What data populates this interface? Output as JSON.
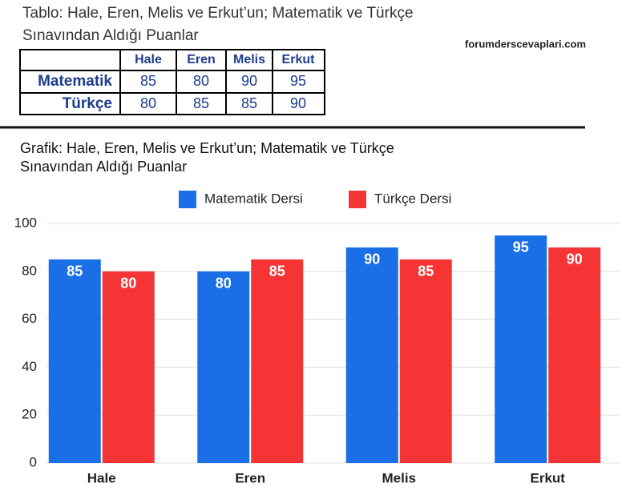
{
  "table_title_lines": [
    "Tablo: Hale, Eren, Melis ve Erkut’un;  Matematik ve Türkçe",
    "Sınavından Aldığı Puanlar"
  ],
  "watermark": "forumderscevaplari.com",
  "table": {
    "header": [
      "Hale",
      "Eren",
      "Melis",
      "Erkut"
    ],
    "rows": [
      {
        "label": "Matematik",
        "values": [
          85,
          80,
          90,
          95
        ]
      },
      {
        "label": "Türkçe",
        "values": [
          80,
          85,
          85,
          90
        ]
      }
    ]
  },
  "chart_data": {
    "type": "bar",
    "title_lines": [
      "Grafik: Hale, Eren, Melis ve Erkut’un; Matematik ve Türkçe",
      "Sınavından Aldığı Puanlar"
    ],
    "categories": [
      "Hale",
      "Eren",
      "Melis",
      "Erkut"
    ],
    "series": [
      {
        "name": "Matematik Dersi",
        "color": "#1a6fe6",
        "values": [
          85,
          80,
          90,
          95
        ]
      },
      {
        "name": "Türkçe Dersi",
        "color": "#f53535",
        "values": [
          80,
          85,
          85,
          90
        ]
      }
    ],
    "ylim": [
      0,
      100
    ],
    "yticks": [
      0,
      20,
      40,
      60,
      80,
      100
    ],
    "grid": true
  }
}
